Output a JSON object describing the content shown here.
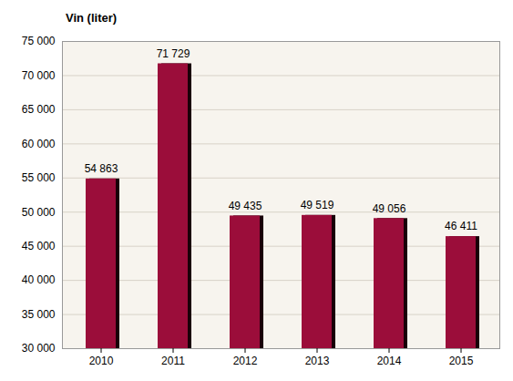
{
  "chart_data": {
    "type": "bar",
    "title": "Vin (liter)",
    "categories": [
      "2010",
      "2011",
      "2012",
      "2013",
      "2014",
      "2015"
    ],
    "values": [
      54863,
      71729,
      49435,
      49519,
      49056,
      46411
    ],
    "value_labels": [
      "54 863",
      "71 729",
      "49 435",
      "49 519",
      "49 056",
      "46 411"
    ],
    "color": "#9b0d3a",
    "ylim": [
      30000,
      75000
    ],
    "yticks": [
      {
        "value": 30000,
        "label": "30 000"
      },
      {
        "value": 35000,
        "label": "35 000"
      },
      {
        "value": 40000,
        "label": "40 000"
      },
      {
        "value": 45000,
        "label": "45 000"
      },
      {
        "value": 50000,
        "label": "50 000"
      },
      {
        "value": 55000,
        "label": "55 000"
      },
      {
        "value": 60000,
        "label": "60 000"
      },
      {
        "value": 65000,
        "label": "65 000"
      },
      {
        "value": 70000,
        "label": "70 000"
      },
      {
        "value": 75000,
        "label": "75 000"
      }
    ],
    "grid": true,
    "data_labels": true
  }
}
